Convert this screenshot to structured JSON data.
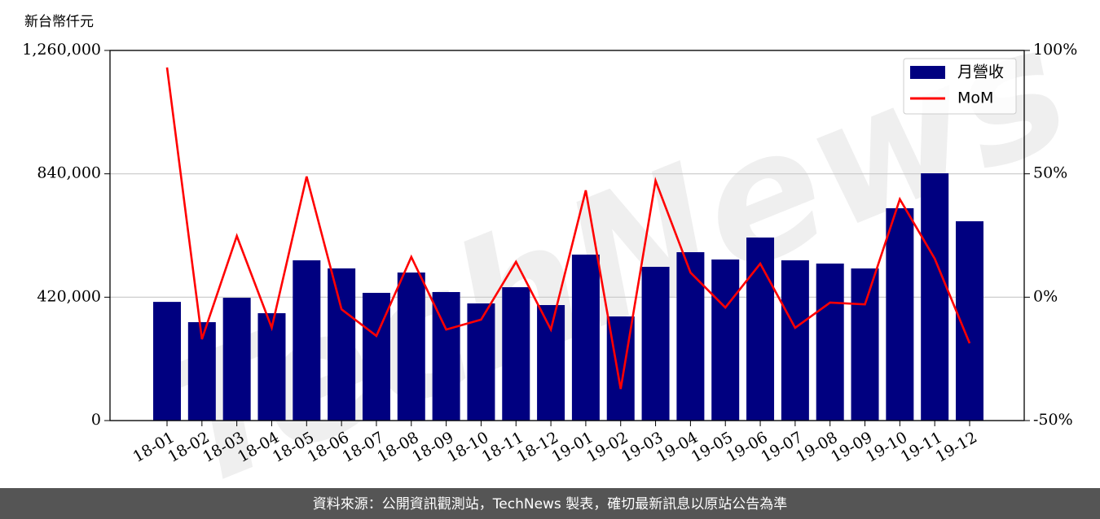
{
  "chart_data": {
    "type": "bar",
    "y_label": "新台幣仟元",
    "watermark": "TechNews",
    "source": "資料來源：公開資訊觀測站，TechNews 製表，確切最新訊息以原站公告為準",
    "categories": [
      "18-01",
      "18-02",
      "18-03",
      "18-04",
      "18-05",
      "18-06",
      "18-07",
      "18-08",
      "18-09",
      "18-10",
      "18-11",
      "18-12",
      "19-01",
      "19-02",
      "19-03",
      "19-04",
      "19-05",
      "19-06",
      "19-07",
      "19-08",
      "19-09",
      "19-10",
      "19-11",
      "19-12"
    ],
    "series": [
      {
        "name": "月營收",
        "type": "bar",
        "color": "#000080",
        "values": [
          404000,
          335000,
          418000,
          365500,
          545500,
          518000,
          434800,
          504000,
          437500,
          398800,
          454000,
          393200,
          565000,
          354500,
          523400,
          573200,
          548300,
          623100,
          545500,
          534500,
          517800,
          722800,
          841800,
          678500
        ]
      },
      {
        "name": "MoM",
        "type": "line",
        "axis": "y2",
        "color": "#ff0000",
        "values": [
          93.1,
          -17.0,
          24.8,
          -12.4,
          48.9,
          -4.9,
          -15.7,
          16.3,
          -13.1,
          -9.1,
          14.3,
          -13.1,
          43.3,
          -37.2,
          47.2,
          10.0,
          -4.2,
          13.6,
          -12.4,
          -2.2,
          -2.9,
          39.7,
          15.6,
          -18.7
        ]
      }
    ],
    "ylim": [
      0,
      1260000
    ],
    "yticks": [
      0,
      {
        "value": 420000,
        "label": "420,000"
      },
      {
        "value": 840000,
        "label": "840,000"
      },
      {
        "value": 1260000,
        "label": "1,260,000"
      }
    ],
    "y2lim": [
      -50,
      100
    ],
    "y2ticks": [
      {
        "value": -50,
        "label": "-50%"
      },
      {
        "value": 0,
        "label": "0%"
      },
      {
        "value": 50,
        "label": "50%"
      },
      {
        "value": 100,
        "label": "100%"
      }
    ],
    "grid": true,
    "legend": "upper right"
  }
}
